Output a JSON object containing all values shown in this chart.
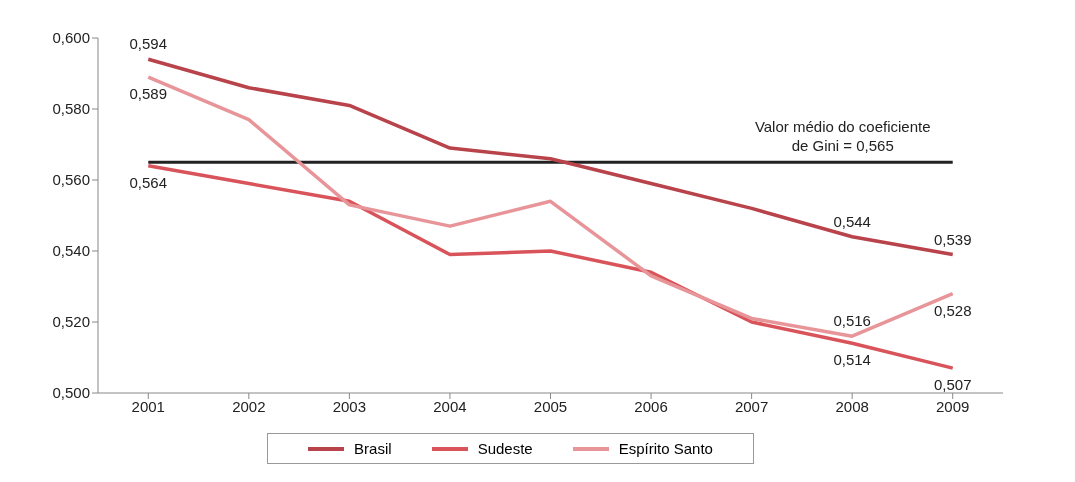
{
  "chart_data": {
    "type": "line",
    "categories": [
      "2001",
      "2002",
      "2003",
      "2004",
      "2005",
      "2006",
      "2007",
      "2008",
      "2009"
    ],
    "series": [
      {
        "name": "Brasil",
        "color": "#b8434b",
        "values": [
          0.594,
          0.586,
          0.581,
          0.569,
          0.566,
          0.559,
          0.552,
          0.544,
          0.539
        ],
        "value_labels": [
          "0,594",
          null,
          null,
          null,
          null,
          null,
          null,
          "0,544",
          "0,539"
        ]
      },
      {
        "name": "Sudeste",
        "color": "#d9545a",
        "values": [
          0.564,
          0.559,
          0.554,
          0.539,
          0.54,
          0.534,
          0.52,
          0.514,
          0.507
        ],
        "value_labels": [
          "0,564",
          null,
          null,
          null,
          null,
          null,
          null,
          "0,514",
          "0,507"
        ]
      },
      {
        "name": "Espírito Santo",
        "color": "#e8959a",
        "values": [
          0.589,
          0.577,
          0.553,
          0.547,
          0.554,
          0.533,
          0.521,
          0.516,
          0.528
        ],
        "value_labels": [
          "0,589",
          null,
          null,
          null,
          null,
          null,
          null,
          "0,516",
          "0,528"
        ]
      }
    ],
    "ylim": [
      0.5,
      0.6
    ],
    "yticks": [
      {
        "value": 0.5,
        "label": "0,500"
      },
      {
        "value": 0.52,
        "label": "0,520"
      },
      {
        "value": 0.54,
        "label": "0,540"
      },
      {
        "value": 0.56,
        "label": "0,560"
      },
      {
        "value": 0.58,
        "label": "0,580"
      },
      {
        "value": 0.6,
        "label": "0,600"
      }
    ],
    "ref_lines": [
      {
        "axis": "y",
        "value": 0.565,
        "label": "Valor médio do coeficiente de Gini = 0,565",
        "color": "#222222"
      }
    ],
    "grid": false,
    "legend": "bottom",
    "marker": "none",
    "line_style": "solid"
  }
}
